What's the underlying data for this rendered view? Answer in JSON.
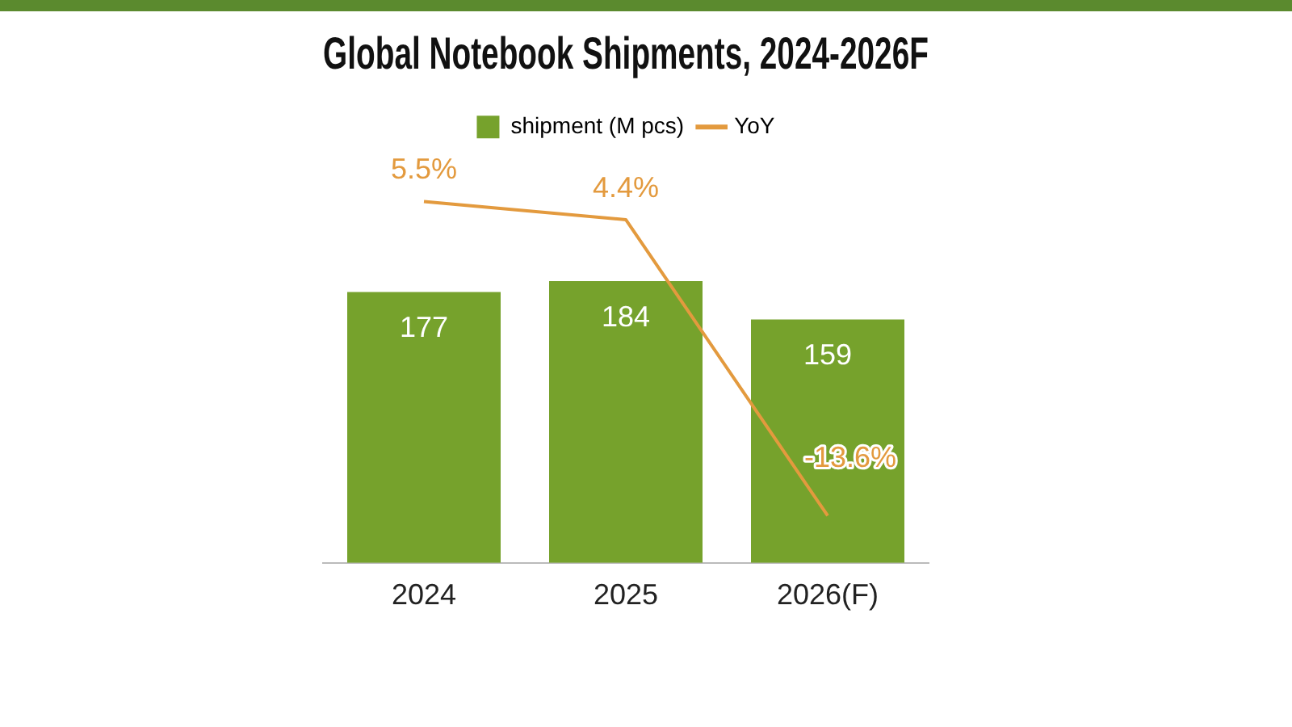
{
  "chart_data": {
    "type": "bar",
    "title": "Global Notebook Shipments, 2024-2026F",
    "categories": [
      "2024",
      "2025",
      "2026(F)"
    ],
    "legend": "top",
    "grid": false,
    "marker": "none",
    "tick_labels": "x",
    "series": [
      {
        "name": "shipment (M pcs)",
        "color": "#76a22c",
        "values": [
          177,
          184,
          159
        ],
        "value_labels": [
          "177",
          "184",
          "159"
        ]
      },
      {
        "name": "YoY",
        "type": "line",
        "axis": "y2",
        "color": "#e39a3e",
        "values": [
          5.5,
          4.4,
          -13.6
        ],
        "value_labels": [
          "5.5%",
          "4.4%",
          "-13.6%"
        ]
      }
    ]
  }
}
